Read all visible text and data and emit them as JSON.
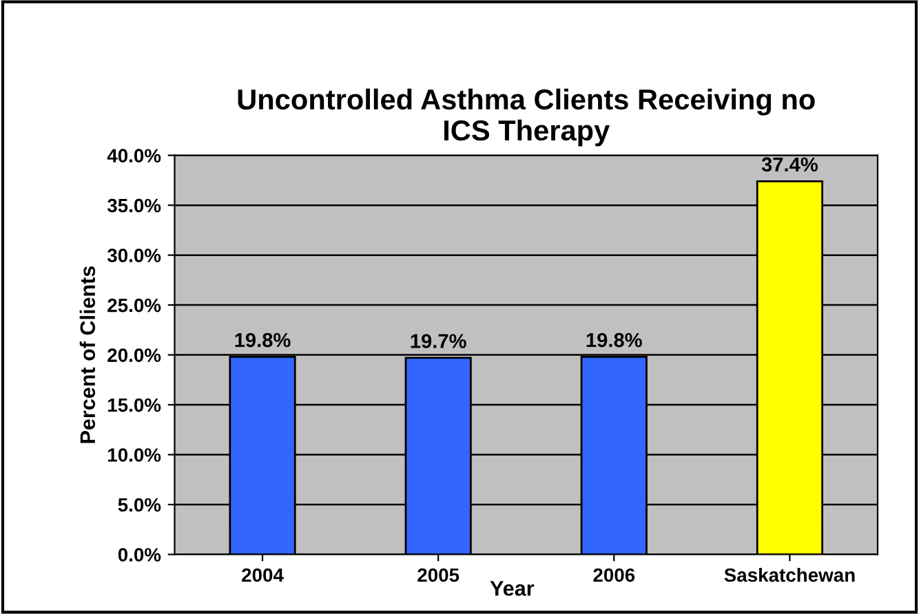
{
  "chart_data": {
    "type": "bar",
    "title": "Uncontrolled Asthma Clients Receiving no ICS Therapy",
    "xlabel": "Year",
    "ylabel": "Percent of Clients",
    "categories": [
      "2004",
      "2005",
      "2006",
      "Saskatchewan"
    ],
    "values": [
      19.8,
      19.7,
      19.8,
      37.4
    ],
    "colors": [
      "#3366ff",
      "#3366ff",
      "#3366ff",
      "#ffff00"
    ],
    "value_labels": [
      "19.8%",
      "19.7%",
      "19.8%",
      "37.4%"
    ],
    "ylim": [
      0,
      40
    ],
    "yticks": [
      {
        "value": 0,
        "label": "0.0%"
      },
      {
        "value": 5,
        "label": "5.0%"
      },
      {
        "value": 10,
        "label": "10.0%"
      },
      {
        "value": 15,
        "label": "15.0%"
      },
      {
        "value": 20,
        "label": "20.0%"
      },
      {
        "value": 25,
        "label": "25.0%"
      },
      {
        "value": 30,
        "label": "30.0%"
      },
      {
        "value": 35,
        "label": "35.0%"
      },
      {
        "value": 40,
        "label": "40.0%"
      }
    ],
    "grid": "y"
  }
}
